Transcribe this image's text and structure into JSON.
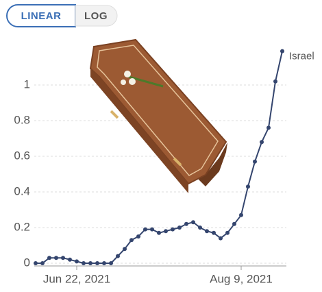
{
  "buttons": [
    "LINEAR",
    "LOG"
  ],
  "chart_data": {
    "type": "line",
    "x": [
      "2021-06-10",
      "2021-06-12",
      "2021-06-14",
      "2021-06-16",
      "2021-06-18",
      "2021-06-20",
      "2021-06-22",
      "2021-06-24",
      "2021-06-26",
      "2021-06-28",
      "2021-06-30",
      "2021-07-02",
      "2021-07-04",
      "2021-07-06",
      "2021-07-08",
      "2021-07-10",
      "2021-07-12",
      "2021-07-14",
      "2021-07-16",
      "2021-07-18",
      "2021-07-20",
      "2021-07-22",
      "2021-07-24",
      "2021-07-26",
      "2021-07-28",
      "2021-07-30",
      "2021-08-01",
      "2021-08-03",
      "2021-08-05",
      "2021-08-07",
      "2021-08-09",
      "2021-08-11",
      "2021-08-13",
      "2021-08-15",
      "2021-08-17",
      "2021-08-19",
      "2021-08-21"
    ],
    "series": [
      {
        "name": "Israel",
        "color": "#34456e",
        "values": [
          0,
          0,
          0.03,
          0.03,
          0.03,
          0.02,
          0.01,
          0,
          0,
          0,
          0,
          0,
          0.04,
          0.08,
          0.13,
          0.15,
          0.19,
          0.19,
          0.17,
          0.18,
          0.19,
          0.2,
          0.22,
          0.23,
          0.2,
          0.18,
          0.17,
          0.14,
          0.17,
          0.22,
          0.27,
          0.43,
          0.57,
          0.68,
          0.76,
          1.02,
          1.19
        ]
      }
    ],
    "xlim": [
      "2021-06-10",
      "2021-08-21"
    ],
    "xticks": [
      {
        "value": "2021-06-22",
        "label": "Jun 22, 2021"
      },
      {
        "value": "2021-08-09",
        "label": "Aug 9, 2021"
      }
    ],
    "ylim": [
      0,
      1.2
    ],
    "yticks": [
      0,
      0.2,
      0.4,
      0.6,
      0.8,
      1
    ],
    "grid": true
  }
}
